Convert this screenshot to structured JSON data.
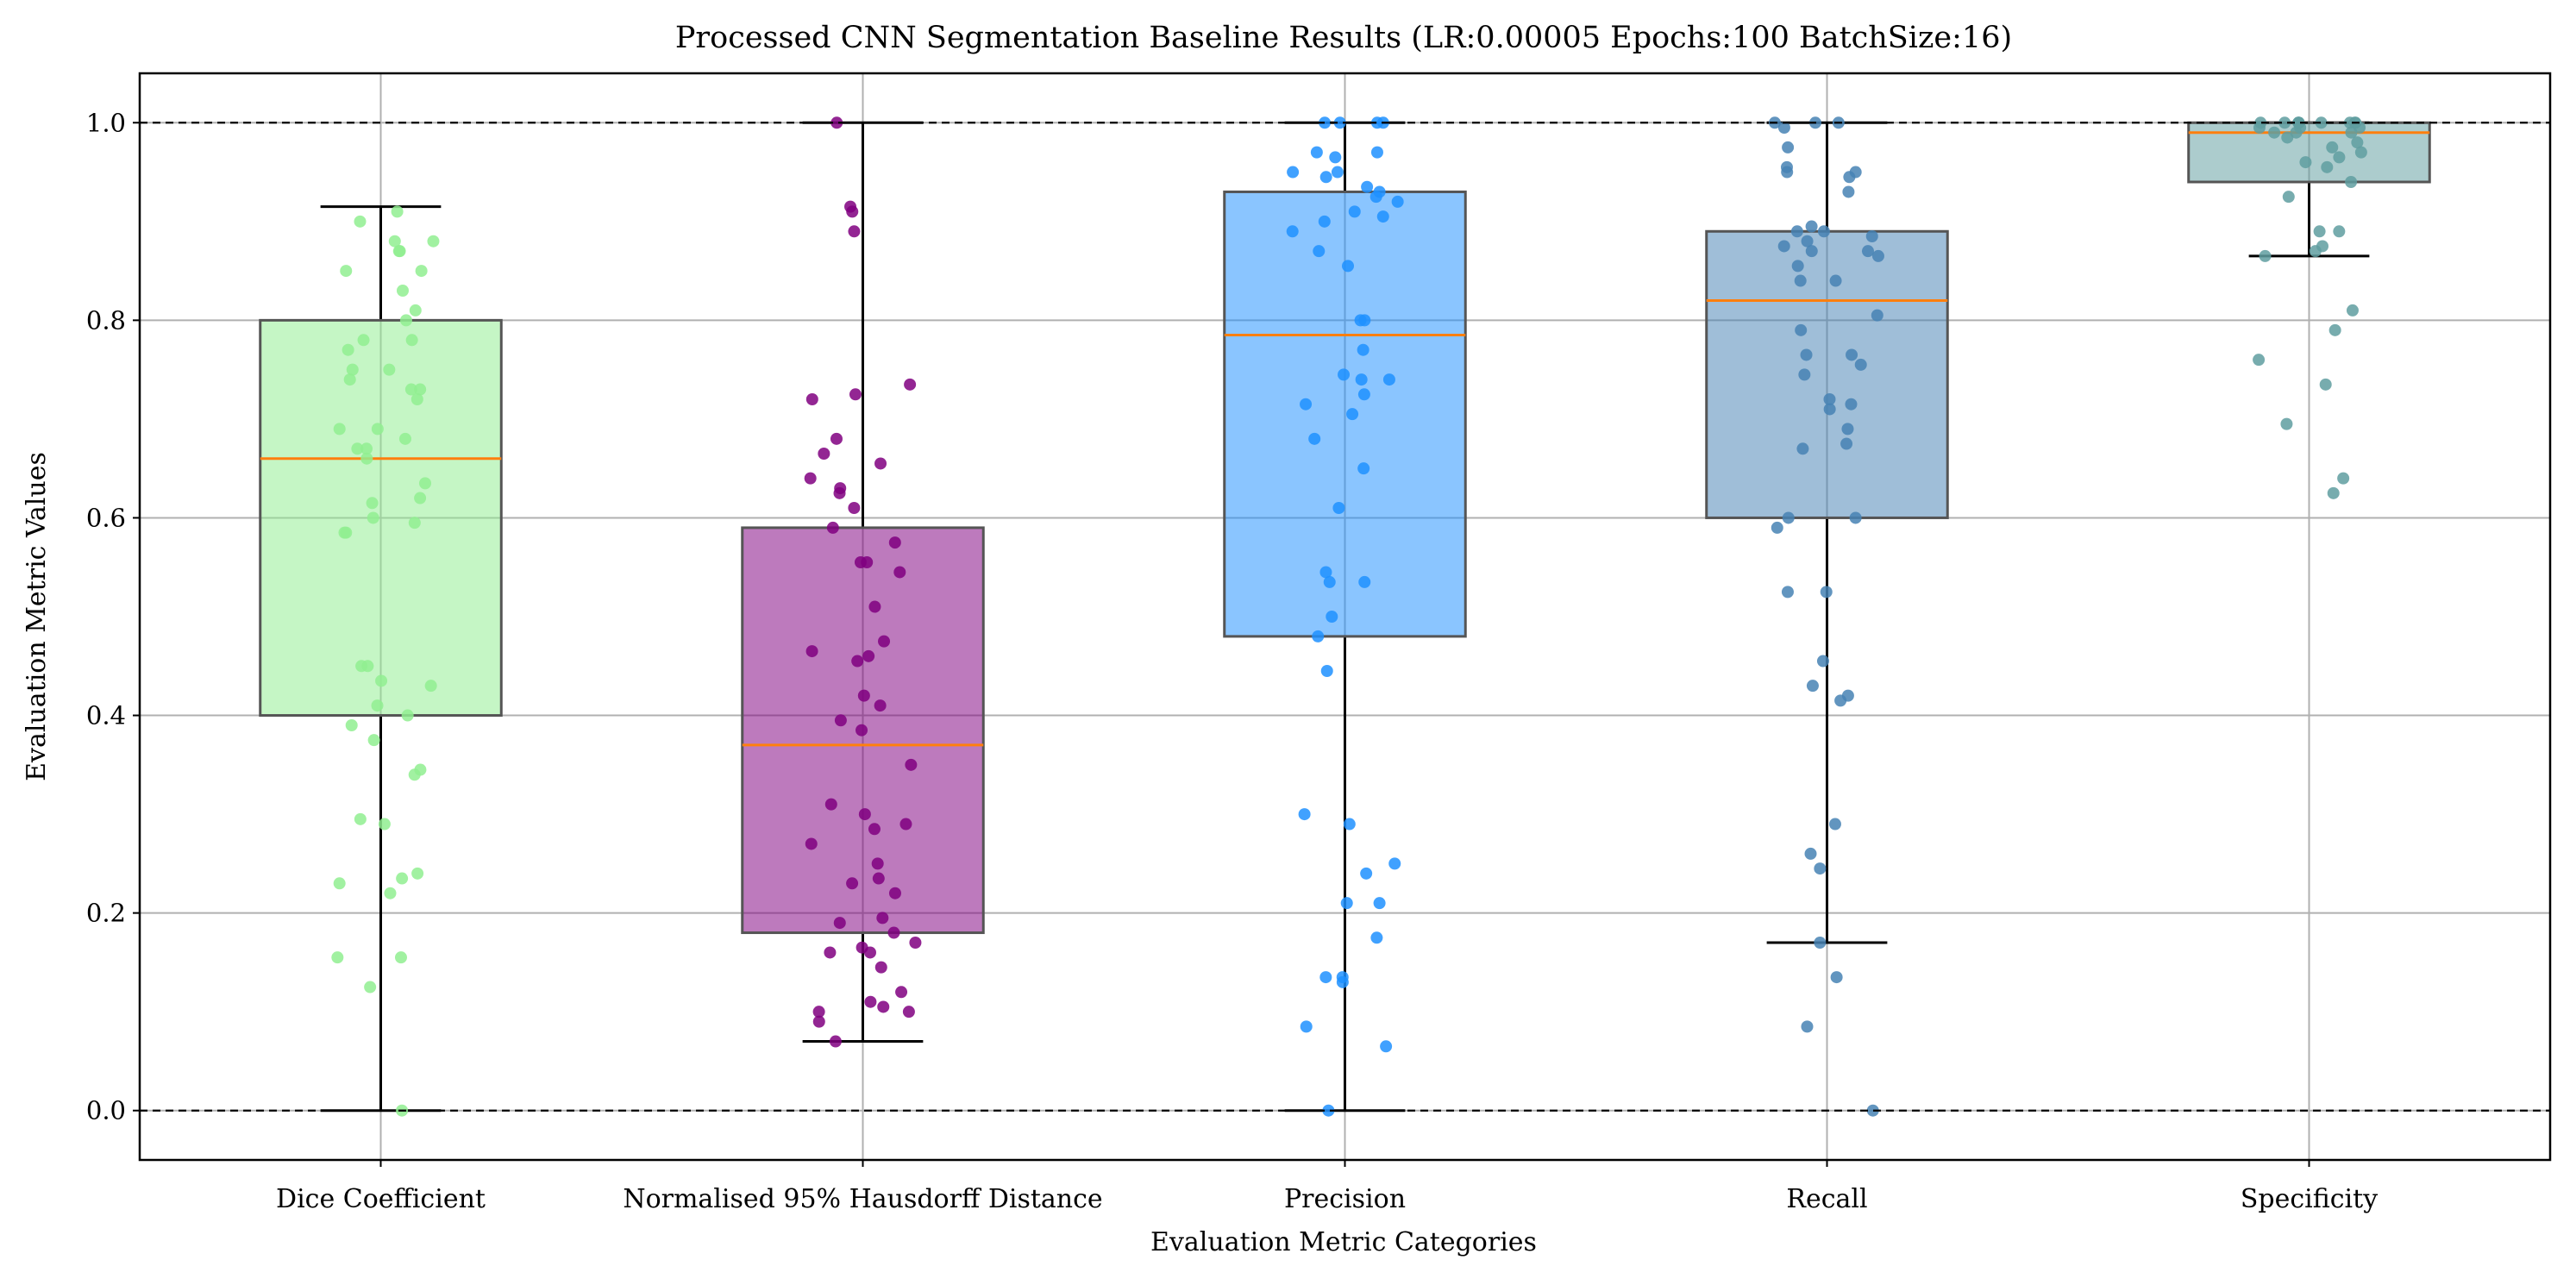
{
  "chart_data": {
    "type": "box",
    "title": "Processed CNN Segmentation Baseline Results (LR:0.00005 Epochs:100 BatchSize:16)",
    "xlabel": "Evaluation Metric Categories",
    "ylabel": "Evaluation Metric Values",
    "ylim": [
      -0.05,
      1.05
    ],
    "yticks": [
      "0.0",
      "0.2",
      "0.4",
      "0.6",
      "0.8",
      "1.0"
    ],
    "grid": true,
    "reference_lines": [
      0.0,
      1.0
    ],
    "median_color": "#ff7f0e",
    "categories": [
      "Dice Coefficient",
      "Normalised 95% Hausdorff Distance",
      "Precision",
      "Recall",
      "Specificity"
    ],
    "series": [
      {
        "box_color": "#90ee90",
        "point_color": "#90ee90",
        "whisker_low": 0.0,
        "q1": 0.4,
        "median": 0.66,
        "q3": 0.8,
        "whisker_high": 0.915,
        "points": [
          0.91,
          0.9,
          0.88,
          0.88,
          0.87,
          0.87,
          0.85,
          0.85,
          0.83,
          0.81,
          0.8,
          0.78,
          0.78,
          0.77,
          0.75,
          0.75,
          0.74,
          0.73,
          0.73,
          0.72,
          0.69,
          0.69,
          0.68,
          0.67,
          0.67,
          0.66,
          0.635,
          0.62,
          0.615,
          0.6,
          0.595,
          0.585,
          0.585,
          0.45,
          0.45,
          0.435,
          0.43,
          0.41,
          0.4,
          0.39,
          0.375,
          0.345,
          0.34,
          0.295,
          0.29,
          0.24,
          0.235,
          0.23,
          0.22,
          0.155,
          0.155,
          0.125,
          0.0
        ]
      },
      {
        "box_color": "#800080",
        "point_color": "#800080",
        "whisker_low": 0.07,
        "q1": 0.18,
        "median": 0.37,
        "q3": 0.59,
        "whisker_high": 1.0,
        "points": [
          1.0,
          0.915,
          0.91,
          0.89,
          0.735,
          0.725,
          0.72,
          0.68,
          0.665,
          0.655,
          0.64,
          0.63,
          0.625,
          0.61,
          0.59,
          0.575,
          0.555,
          0.555,
          0.545,
          0.51,
          0.475,
          0.465,
          0.46,
          0.455,
          0.42,
          0.41,
          0.395,
          0.385,
          0.35,
          0.31,
          0.3,
          0.29,
          0.285,
          0.27,
          0.25,
          0.235,
          0.23,
          0.22,
          0.195,
          0.19,
          0.18,
          0.17,
          0.165,
          0.16,
          0.16,
          0.145,
          0.12,
          0.11,
          0.105,
          0.1,
          0.1,
          0.09,
          0.07
        ]
      },
      {
        "box_color": "#1e90ff",
        "point_color": "#1e90ff",
        "whisker_low": 0.0,
        "q1": 0.48,
        "median": 0.785,
        "q3": 0.93,
        "whisker_high": 1.0,
        "points": [
          1.0,
          1.0,
          1.0,
          1.0,
          0.97,
          0.97,
          0.965,
          0.95,
          0.95,
          0.945,
          0.935,
          0.93,
          0.925,
          0.92,
          0.91,
          0.905,
          0.9,
          0.89,
          0.87,
          0.855,
          0.8,
          0.8,
          0.77,
          0.745,
          0.74,
          0.74,
          0.725,
          0.715,
          0.705,
          0.68,
          0.65,
          0.61,
          0.545,
          0.535,
          0.535,
          0.5,
          0.48,
          0.445,
          0.3,
          0.29,
          0.25,
          0.24,
          0.21,
          0.21,
          0.175,
          0.135,
          0.135,
          0.13,
          0.085,
          0.065,
          0.0
        ]
      },
      {
        "box_color": "#4682b4",
        "point_color": "#4682b4",
        "whisker_low": 0.17,
        "q1": 0.6,
        "median": 0.82,
        "q3": 0.89,
        "whisker_high": 1.0,
        "points": [
          1.0,
          1.0,
          1.0,
          0.995,
          0.975,
          0.955,
          0.95,
          0.95,
          0.945,
          0.93,
          0.895,
          0.89,
          0.89,
          0.885,
          0.88,
          0.875,
          0.87,
          0.87,
          0.865,
          0.855,
          0.84,
          0.84,
          0.805,
          0.79,
          0.765,
          0.765,
          0.755,
          0.745,
          0.72,
          0.715,
          0.71,
          0.69,
          0.675,
          0.67,
          0.6,
          0.6,
          0.59,
          0.525,
          0.525,
          0.455,
          0.43,
          0.42,
          0.415,
          0.29,
          0.26,
          0.245,
          0.17,
          0.135,
          0.085,
          0.0
        ]
      },
      {
        "box_color": "#5f9ea0",
        "point_color": "#5f9ea0",
        "whisker_low": 0.865,
        "q1": 0.94,
        "median": 0.99,
        "q3": 1.0,
        "whisker_high": 1.0,
        "points": [
          1.0,
          1.0,
          1.0,
          1.0,
          1.0,
          1.0,
          1.0,
          1.0,
          1.0,
          0.995,
          0.995,
          0.995,
          0.99,
          0.99,
          0.99,
          0.985,
          0.98,
          0.975,
          0.97,
          0.965,
          0.96,
          0.955,
          0.94,
          0.925,
          0.89,
          0.89,
          0.875,
          0.87,
          0.865,
          0.81,
          0.79,
          0.76,
          0.735,
          0.695,
          0.64,
          0.625
        ]
      }
    ]
  }
}
